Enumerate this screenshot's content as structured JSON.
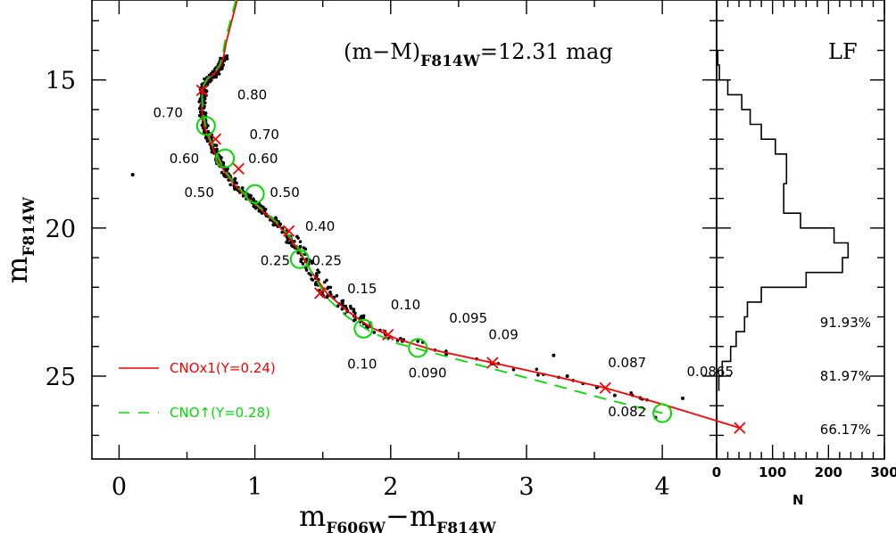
{
  "chart_data": [
    {
      "type": "scatter",
      "annotation": {
        "main": "(m−M)",
        "sub": "F814W",
        "value": "=12.31  mag"
      },
      "xlabel": {
        "main1": "m",
        "sub1": "F606W",
        "minus": "−",
        "main2": "m",
        "sub2": "F814W"
      },
      "ylabel": {
        "main": "m",
        "sub": "F814W"
      },
      "xlim": [
        -0.2,
        4.4
      ],
      "ylim": [
        27.8,
        12.3
      ],
      "x_ticks": [
        0,
        1,
        2,
        3,
        4
      ],
      "x_tick_labels": [
        "0",
        "1",
        "2",
        "3",
        "4"
      ],
      "y_ticks": [
        15,
        20,
        25
      ],
      "y_tick_labels": [
        "15",
        "20",
        "25"
      ],
      "series": [
        {
          "name": "CNOx1(Y=0.24)",
          "color": "#ff0000",
          "style": "solid",
          "x": [
            0.87,
            0.83,
            0.79,
            0.77,
            0.75,
            0.71,
            0.66,
            0.62,
            0.61,
            0.61,
            0.63,
            0.66,
            0.7,
            0.74,
            0.79,
            0.86,
            0.95,
            1.05,
            1.15,
            1.25,
            1.33,
            1.42,
            1.53,
            1.68,
            1.85,
            2.05,
            2.3,
            2.75,
            3.2,
            3.58,
            4.0,
            4.57
          ],
          "y": [
            12.3,
            13.0,
            13.7,
            14.2,
            14.5,
            14.75,
            14.95,
            15.2,
            15.6,
            16.1,
            16.6,
            17.0,
            17.4,
            17.8,
            18.2,
            18.6,
            19.0,
            19.4,
            19.8,
            20.3,
            20.8,
            21.5,
            22.2,
            22.8,
            23.35,
            23.75,
            24.1,
            24.55,
            25.0,
            25.4,
            25.95,
            26.75
          ]
        },
        {
          "name": "CNO↑(Y=0.28)",
          "color": "#00dd00",
          "style": "dashed",
          "x": [
            0.86,
            0.82,
            0.78,
            0.76,
            0.74,
            0.7,
            0.65,
            0.62,
            0.61,
            0.62,
            0.64,
            0.67,
            0.71,
            0.75,
            0.8,
            0.87,
            0.96,
            1.06,
            1.16,
            1.26,
            1.34,
            1.43,
            1.54,
            1.68,
            1.85,
            2.05,
            2.3,
            2.75,
            3.2,
            3.6,
            4.0
          ],
          "y": [
            12.3,
            13.0,
            13.7,
            14.2,
            14.5,
            14.75,
            14.95,
            15.2,
            15.6,
            16.1,
            16.6,
            17.0,
            17.4,
            17.8,
            18.2,
            18.6,
            19.0,
            19.4,
            19.8,
            20.3,
            20.8,
            21.6,
            22.4,
            23.0,
            23.5,
            23.9,
            24.2,
            24.75,
            25.3,
            25.8,
            26.25
          ]
        }
      ],
      "red_markers": {
        "x": [
          0.61,
          0.71,
          0.88,
          1.25,
          1.48,
          1.98,
          2.75,
          3.58,
          4.57
        ],
        "y": [
          15.35,
          17.0,
          18.0,
          20.1,
          22.2,
          23.6,
          24.55,
          25.4,
          26.75
        ]
      },
      "green_circles": {
        "x": [
          0.64,
          0.78,
          1.0,
          1.33,
          1.8,
          2.2,
          4.0
        ],
        "y": [
          16.55,
          17.65,
          18.85,
          21.05,
          23.4,
          24.05,
          26.25
        ]
      },
      "mass_labels": [
        {
          "text": "0.80",
          "x": 0.87,
          "y": 15.5
        },
        {
          "text": "0.70",
          "x": 0.25,
          "y": 16.1
        },
        {
          "text": "0.70",
          "x": 0.96,
          "y": 16.85
        },
        {
          "text": "0.60",
          "x": 0.37,
          "y": 17.65
        },
        {
          "text": "0.60",
          "x": 0.95,
          "y": 17.65
        },
        {
          "text": "0.50",
          "x": 0.48,
          "y": 18.8
        },
        {
          "text": "0.50",
          "x": 1.11,
          "y": 18.8
        },
        {
          "text": "0.40",
          "x": 1.37,
          "y": 19.95
        },
        {
          "text": "0.25",
          "x": 1.04,
          "y": 21.1
        },
        {
          "text": "0.25",
          "x": 1.42,
          "y": 21.1
        },
        {
          "text": "0.15",
          "x": 1.68,
          "y": 22.05
        },
        {
          "text": "0.10",
          "x": 2.0,
          "y": 22.6
        },
        {
          "text": "0.095",
          "x": 2.43,
          "y": 23.05
        },
        {
          "text": "0.09",
          "x": 2.72,
          "y": 23.6
        },
        {
          "text": "0.10",
          "x": 1.68,
          "y": 24.6
        },
        {
          "text": "0.090",
          "x": 2.13,
          "y": 24.9
        },
        {
          "text": "0.087",
          "x": 3.6,
          "y": 24.55
        },
        {
          "text": "0.0865",
          "x": 4.18,
          "y": 24.85
        },
        {
          "text": "0.082",
          "x": 3.6,
          "y": 26.2
        }
      ]
    },
    {
      "type": "histogram",
      "title": "LF",
      "xlabel": "N",
      "xlim": [
        0,
        300
      ],
      "x_ticks": [
        0,
        100,
        200,
        300
      ],
      "x_tick_labels": [
        "0",
        "100",
        "200",
        "300"
      ],
      "bins_mag": [
        14.0,
        14.5,
        15.0,
        15.5,
        16.0,
        16.5,
        17.0,
        17.5,
        18.0,
        18.5,
        19.0,
        19.5,
        20.0,
        20.5,
        21.0,
        21.5,
        22.0,
        22.5,
        23.0,
        23.5,
        24.0,
        24.5,
        25.0
      ],
      "counts": [
        2,
        5,
        20,
        45,
        60,
        80,
        105,
        125,
        125,
        120,
        120,
        150,
        210,
        235,
        225,
        160,
        80,
        55,
        50,
        35,
        25,
        10,
        4
      ],
      "percentages": [
        {
          "text": "91.93%",
          "mag": 23.2
        },
        {
          "text": "81.97%",
          "mag": 25.0
        },
        {
          "text": "66.17%",
          "mag": 26.8
        }
      ]
    }
  ]
}
